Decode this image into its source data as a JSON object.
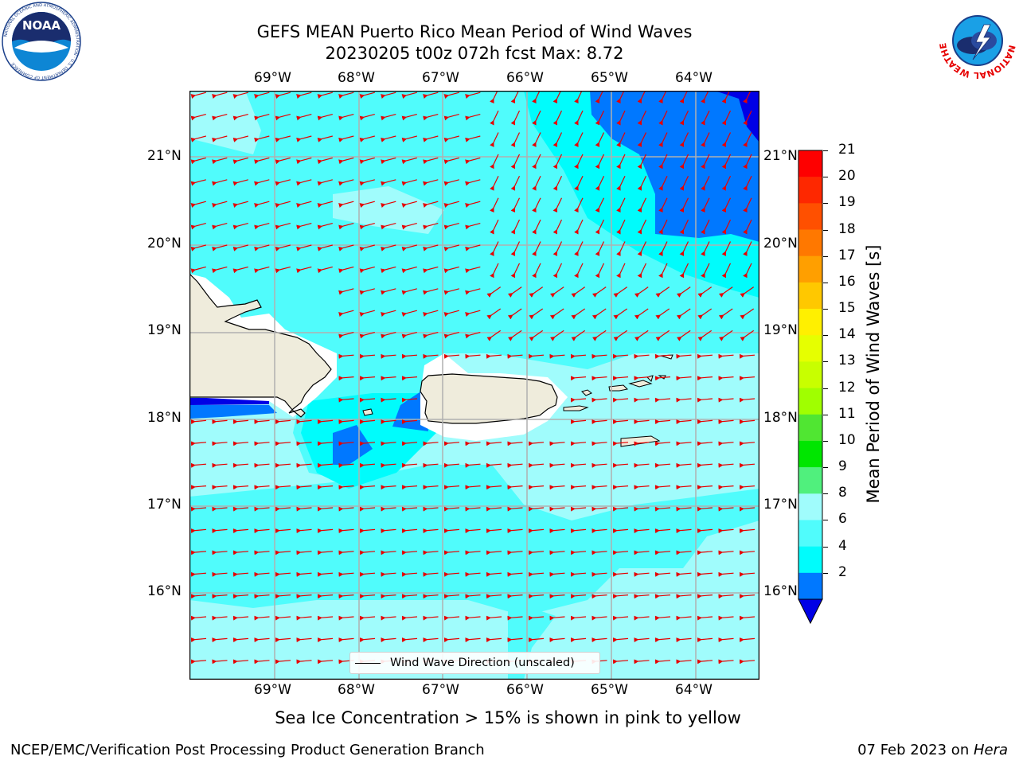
{
  "title_line1": "GEFS MEAN Puerto Rico Mean Period of Wind Waves",
  "title_line2": "20230205 t00z 072h fcst   Max: 8.72",
  "top_lon_labels": [
    "69°W",
    "68°W",
    "67°W",
    "66°W",
    "65°W",
    "64°W"
  ],
  "bottom_lon_labels": [
    "69°W",
    "68°W",
    "67°W",
    "66°W",
    "65°W",
    "64°W"
  ],
  "left_lat_labels": [
    "21°N",
    "20°N",
    "19°N",
    "18°N",
    "17°N",
    "16°N"
  ],
  "right_lat_labels": [
    "21°N",
    "20°N",
    "19°N",
    "18°N",
    "17°N",
    "16°N"
  ],
  "legend_label": "Wind Wave Direction (unscaled)",
  "colorbar": {
    "label": "Mean Period of Wind Waves [s]",
    "ticks": [
      "21",
      "20",
      "19",
      "18",
      "17",
      "16",
      "15",
      "14",
      "13",
      "12",
      "11",
      "10",
      "9",
      "8",
      "6",
      "4",
      "2"
    ],
    "colors": [
      "#fe0000",
      "#fe2800",
      "#ff5000",
      "#ff7800",
      "#ff9f00",
      "#ffc800",
      "#fff000",
      "#e6ff00",
      "#c8ff00",
      "#a0ff00",
      "#50e632",
      "#00e600",
      "#50f07d",
      "#a0fcfc",
      "#50fcfc",
      "#00fcfc",
      "#0078ff"
    ],
    "underflow_color": "#0000e6"
  },
  "map_colors": {
    "period_8_9": "#a0fcfc",
    "period_6_8": "#50fcfc",
    "period_4_6": "#00fcfc",
    "period_2_4": "#0078ff",
    "period_below_2": "#0000e6",
    "land": "#efecdc",
    "arrow": "#e60000"
  },
  "sea_ice_note": "Sea Ice Concentration > 15% is shown in pink to yellow",
  "footer_left": "NCEP/EMC/Verification Post Processing Product Generation Branch",
  "footer_right_date": "07 Feb 2023 on ",
  "footer_right_machine": "Hera",
  "logos": {
    "noaa_text": "NOAA",
    "noaa_ring_text": "NATIONAL OCEANIC AND ATMOSPHERIC ADMINISTRATION · U.S. DEPARTMENT OF COMMERCE",
    "nws_ring_text": "NATIONAL WEATHER SERVICE"
  }
}
